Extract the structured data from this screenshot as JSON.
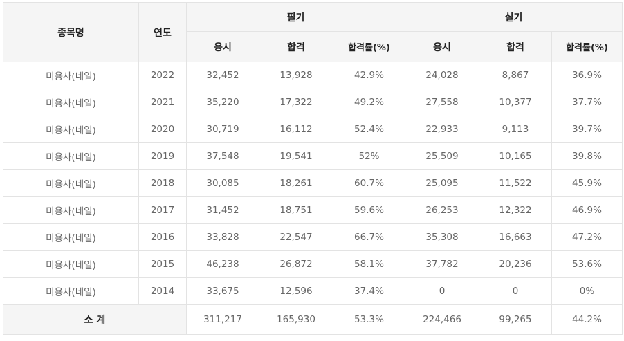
{
  "header": {
    "name": "종목명",
    "year": "연도",
    "written": "필기",
    "practical": "실기",
    "apply": "응시",
    "pass": "합격",
    "rate": "합격률(%)"
  },
  "rows": [
    {
      "name": "미용사(네일)",
      "year": "2022",
      "w_apply": "32,452",
      "w_pass": "13,928",
      "w_rate": "42.9%",
      "p_apply": "24,028",
      "p_pass": "8,867",
      "p_rate": "36.9%"
    },
    {
      "name": "미용사(네일)",
      "year": "2021",
      "w_apply": "35,220",
      "w_pass": "17,322",
      "w_rate": "49.2%",
      "p_apply": "27,558",
      "p_pass": "10,377",
      "p_rate": "37.7%"
    },
    {
      "name": "미용사(네일)",
      "year": "2020",
      "w_apply": "30,719",
      "w_pass": "16,112",
      "w_rate": "52.4%",
      "p_apply": "22,933",
      "p_pass": "9,113",
      "p_rate": "39.7%"
    },
    {
      "name": "미용사(네일)",
      "year": "2019",
      "w_apply": "37,548",
      "w_pass": "19,541",
      "w_rate": "52%",
      "p_apply": "25,509",
      "p_pass": "10,165",
      "p_rate": "39.8%"
    },
    {
      "name": "미용사(네일)",
      "year": "2018",
      "w_apply": "30,085",
      "w_pass": "18,261",
      "w_rate": "60.7%",
      "p_apply": "25,095",
      "p_pass": "11,522",
      "p_rate": "45.9%"
    },
    {
      "name": "미용사(네일)",
      "year": "2017",
      "w_apply": "31,452",
      "w_pass": "18,751",
      "w_rate": "59.6%",
      "p_apply": "26,253",
      "p_pass": "12,322",
      "p_rate": "46.9%"
    },
    {
      "name": "미용사(네일)",
      "year": "2016",
      "w_apply": "33,828",
      "w_pass": "22,547",
      "w_rate": "66.7%",
      "p_apply": "35,308",
      "p_pass": "16,663",
      "p_rate": "47.2%"
    },
    {
      "name": "미용사(네일)",
      "year": "2015",
      "w_apply": "46,238",
      "w_pass": "26,872",
      "w_rate": "58.1%",
      "p_apply": "37,782",
      "p_pass": "20,236",
      "p_rate": "53.6%"
    },
    {
      "name": "미용사(네일)",
      "year": "2014",
      "w_apply": "33,675",
      "w_pass": "12,596",
      "w_rate": "37.4%",
      "p_apply": "0",
      "p_pass": "0",
      "p_rate": "0%"
    }
  ],
  "total": {
    "label": "소 계",
    "w_apply": "311,217",
    "w_pass": "165,930",
    "w_rate": "53.3%",
    "p_apply": "224,466",
    "p_pass": "99,265",
    "p_rate": "44.2%"
  }
}
